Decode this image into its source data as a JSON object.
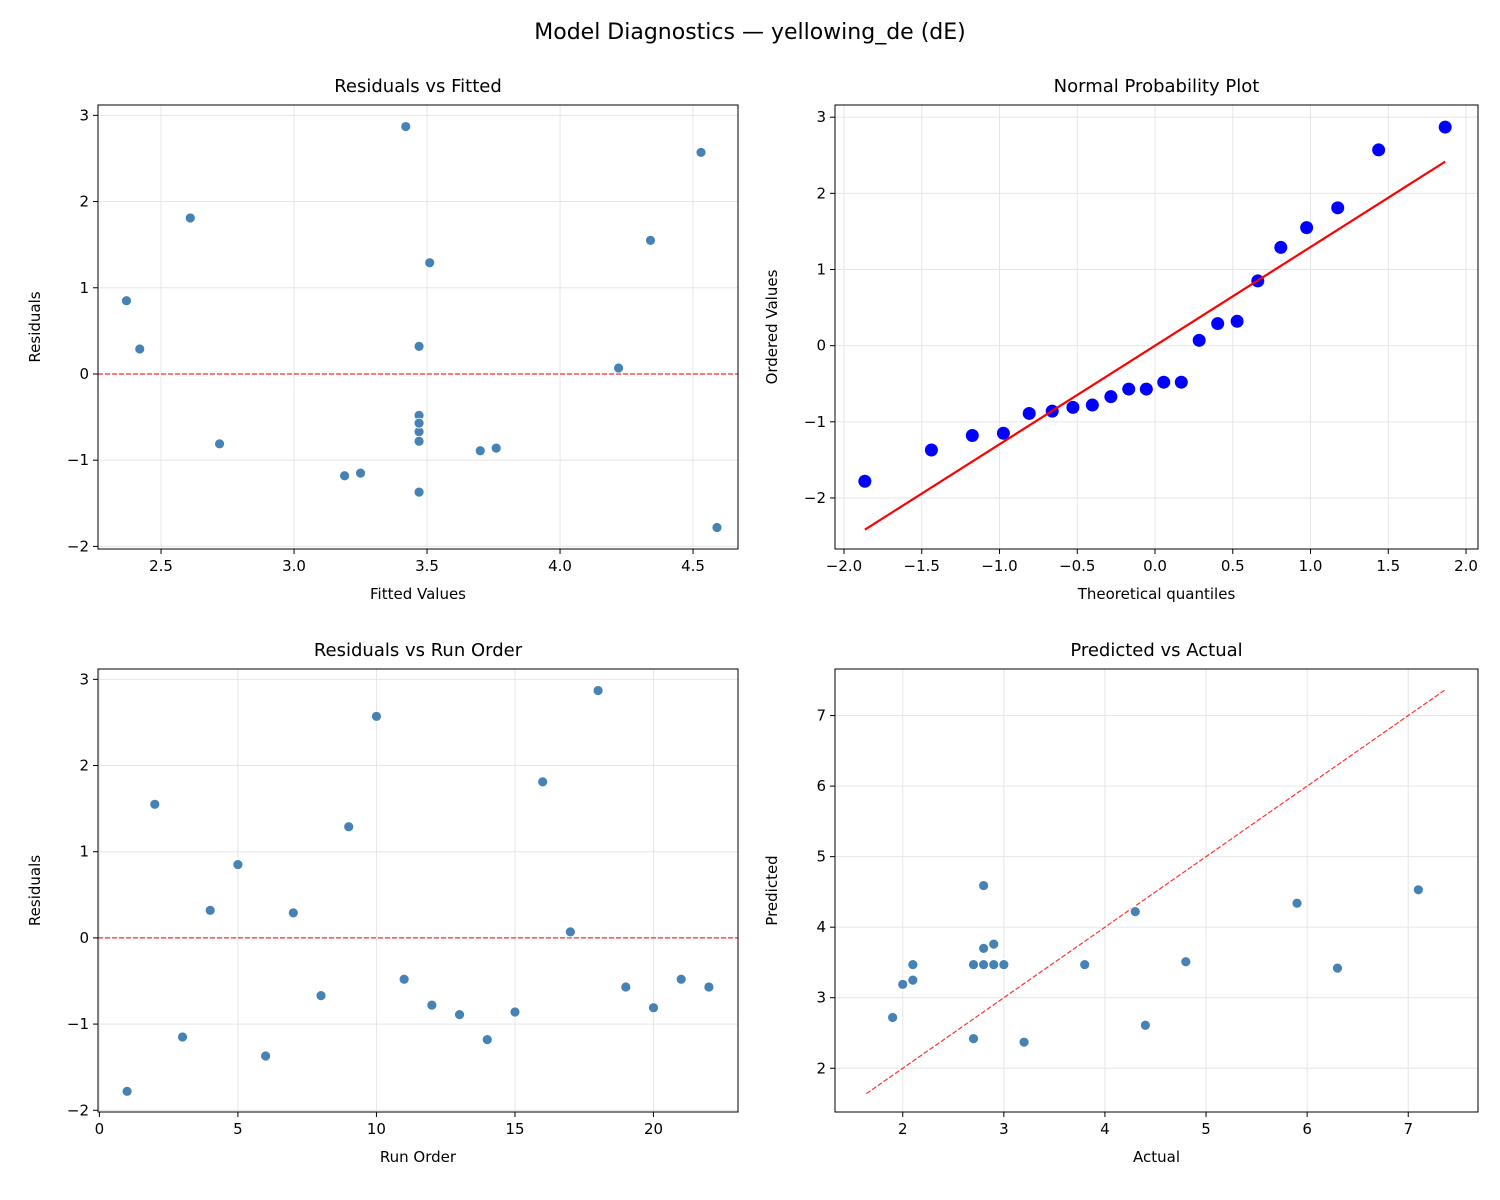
{
  "suptitle": "Model Diagnostics — yellowing_de (dE)",
  "colors": {
    "point": "#4682b4",
    "qq_point": "#0000ff",
    "ref_line": "#ff0000",
    "grid": "#e6e6e6"
  },
  "chart_data": [
    {
      "id": "resid_fitted",
      "type": "scatter",
      "title": "Residuals vs Fitted",
      "xlabel": "Fitted Values",
      "ylabel": "Residuals",
      "xlim": [
        2.263,
        4.669
      ],
      "ylim": [
        -2.03,
        3.12
      ],
      "xticks": [
        2.5,
        3.0,
        3.5,
        4.0,
        4.5
      ],
      "xticklabels": [
        "2.5",
        "3.0",
        "3.5",
        "4.0",
        "4.5"
      ],
      "yticks": [
        -2,
        -1,
        0,
        1,
        2,
        3
      ],
      "yticklabels": [
        "−2",
        "−1",
        "0",
        "1",
        "2",
        "3"
      ],
      "grid": true,
      "hline": 0,
      "x": [
        4.59,
        4.34,
        3.25,
        3.47,
        2.37,
        3.47,
        2.42,
        3.47,
        3.51,
        4.53,
        3.47,
        3.47,
        3.7,
        3.19,
        3.76,
        2.61,
        4.22,
        3.42,
        3.47,
        2.72,
        3.47,
        3.47
      ],
      "y": [
        -1.78,
        1.55,
        -1.15,
        0.32,
        0.85,
        -1.37,
        0.29,
        -0.67,
        1.29,
        2.57,
        -0.48,
        -0.78,
        -0.89,
        -1.18,
        -0.86,
        1.81,
        0.07,
        2.87,
        -0.57,
        -0.81,
        -0.48,
        -0.57
      ]
    },
    {
      "id": "normal_prob",
      "type": "scatter",
      "title": "Normal Probability Plot",
      "xlabel": "Theoretical quantiles",
      "ylabel": "Ordered Values",
      "xlim": [
        -2.058,
        2.077
      ],
      "ylim": [
        -2.67,
        3.16
      ],
      "xticks": [
        -2,
        -1.5,
        -1,
        -0.5,
        0,
        0.5,
        1,
        1.5,
        2
      ],
      "xticklabels": [
        "−2.0",
        "−1.5",
        "−1.0",
        "−0.5",
        "0.0",
        "0.5",
        "1.0",
        "1.5",
        "2.0"
      ],
      "yticks": [
        -2,
        -1,
        0,
        1,
        2,
        3
      ],
      "yticklabels": [
        "−2",
        "−1",
        "0",
        "1",
        "2",
        "3"
      ],
      "grid": true,
      "fit_line": {
        "slope": 1.295,
        "intercept": 0.0
      },
      "x": [
        -1.866,
        -1.438,
        -1.175,
        -0.975,
        -0.809,
        -0.661,
        -0.528,
        -0.403,
        -0.284,
        -0.169,
        -0.056,
        0.056,
        0.169,
        0.284,
        0.403,
        0.528,
        0.661,
        0.809,
        0.975,
        1.175,
        1.438,
        1.866
      ],
      "y": [
        -1.78,
        -1.37,
        -1.18,
        -1.15,
        -0.89,
        -0.86,
        -0.81,
        -0.78,
        -0.67,
        -0.57,
        -0.57,
        -0.48,
        -0.48,
        0.07,
        0.29,
        0.32,
        0.85,
        1.29,
        1.55,
        1.81,
        2.57,
        2.87
      ]
    },
    {
      "id": "resid_order",
      "type": "scatter",
      "title": "Residuals vs Run Order",
      "xlabel": "Run Order",
      "ylabel": "Residuals",
      "xlim": [
        -0.05,
        23.05
      ],
      "ylim": [
        -2.02,
        3.12
      ],
      "xticks": [
        0,
        5,
        10,
        15,
        20
      ],
      "xticklabels": [
        "0",
        "5",
        "10",
        "15",
        "20"
      ],
      "yticks": [
        -2,
        -1,
        0,
        1,
        2,
        3
      ],
      "yticklabels": [
        "−2",
        "−1",
        "0",
        "1",
        "2",
        "3"
      ],
      "grid": true,
      "hline": 0,
      "x": [
        1,
        2,
        3,
        4,
        5,
        6,
        7,
        8,
        9,
        10,
        11,
        12,
        13,
        14,
        15,
        16,
        17,
        18,
        19,
        20,
        21,
        22
      ],
      "y": [
        -1.78,
        1.55,
        -1.15,
        0.32,
        0.85,
        -1.37,
        0.29,
        -0.67,
        1.29,
        2.57,
        -0.48,
        -0.78,
        -0.89,
        -1.18,
        -0.86,
        1.81,
        0.07,
        2.87,
        -0.57,
        -0.81,
        -0.48,
        -0.57
      ]
    },
    {
      "id": "pred_actual",
      "type": "scatter",
      "title": "Predicted vs Actual",
      "xlabel": "Actual",
      "ylabel": "Predicted",
      "xlim": [
        1.33,
        7.69
      ],
      "ylim": [
        1.38,
        7.66
      ],
      "xticks": [
        2,
        3,
        4,
        5,
        6,
        7
      ],
      "xticklabels": [
        "2",
        "3",
        "4",
        "5",
        "6",
        "7"
      ],
      "yticks": [
        2,
        3,
        4,
        5,
        6,
        7
      ],
      "yticklabels": [
        "2",
        "3",
        "4",
        "5",
        "6",
        "7"
      ],
      "grid": true,
      "diagonal": [
        1.64,
        7.37
      ],
      "x": [
        2.8,
        5.9,
        2.1,
        3.8,
        3.2,
        2.1,
        2.7,
        2.8,
        4.8,
        7.1,
        3.0,
        2.7,
        2.8,
        2.0,
        2.9,
        4.4,
        4.3,
        6.3,
        2.9,
        1.9,
        3.0,
        2.9
      ],
      "y": [
        4.59,
        4.34,
        3.25,
        3.47,
        2.37,
        3.47,
        2.42,
        3.47,
        3.51,
        4.53,
        3.47,
        3.47,
        3.7,
        3.19,
        3.76,
        2.61,
        4.22,
        3.42,
        3.47,
        2.72,
        3.47,
        3.47
      ]
    }
  ]
}
